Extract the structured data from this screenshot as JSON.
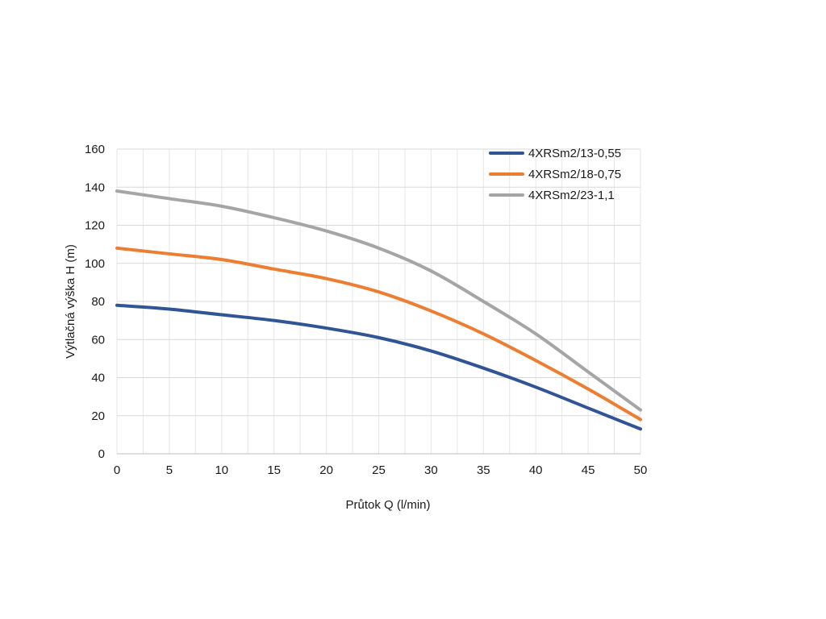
{
  "chart_data": {
    "type": "line",
    "title": "",
    "xlabel": "Průtok Q (l/min)",
    "ylabel": "Výtlačná výška H (m)",
    "xlim": [
      0,
      50
    ],
    "ylim": [
      0,
      160
    ],
    "xticks": [
      0,
      5,
      10,
      15,
      20,
      25,
      30,
      35,
      40,
      45,
      50
    ],
    "yticks": [
      0,
      20,
      40,
      60,
      80,
      100,
      120,
      140,
      160
    ],
    "x_minor_step": 2.5,
    "grid": true,
    "legend_position": "top-right",
    "x": [
      0,
      5,
      10,
      15,
      20,
      25,
      30,
      35,
      40,
      45,
      50
    ],
    "series": [
      {
        "name": "4XRSm2/13-0,55",
        "color": "#2f5597",
        "values": [
          78,
          76,
          73,
          70,
          66,
          61,
          54,
          45,
          35,
          24,
          13
        ]
      },
      {
        "name": "4XRSm2/18-0,75",
        "color": "#ed7d31",
        "values": [
          108,
          105,
          102,
          97,
          92,
          85,
          75,
          63,
          49,
          34,
          18
        ]
      },
      {
        "name": "4XRSm2/23-1,1",
        "color": "#a5a5a5",
        "values": [
          138,
          134,
          130,
          124,
          117,
          108,
          96,
          80,
          63,
          43,
          23
        ]
      }
    ]
  }
}
